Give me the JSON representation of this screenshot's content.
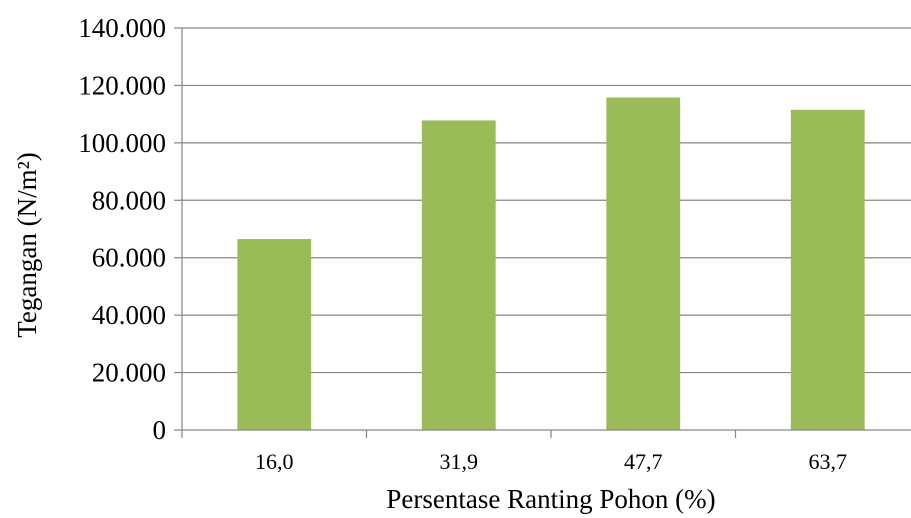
{
  "chart_data": {
    "type": "bar",
    "categories": [
      "16,0",
      "31,9",
      "47,7",
      "63,7"
    ],
    "values": [
      66500,
      107800,
      115800,
      111500
    ],
    "xlabel": "Persentase Ranting Pohon (%)",
    "ylabel": "Tegangan (N/m²)",
    "ylim": [
      0,
      140000
    ],
    "y_ticks": [
      0,
      20000,
      40000,
      60000,
      80000,
      100000,
      120000,
      140000
    ],
    "y_tick_labels": [
      "0",
      "20.000",
      "40.000",
      "60.000",
      "80.000",
      "100.000",
      "120.000",
      "140.000"
    ],
    "grid": true,
    "legend": false,
    "bar_color": "#9bbb59",
    "grid_color": "#868686"
  }
}
